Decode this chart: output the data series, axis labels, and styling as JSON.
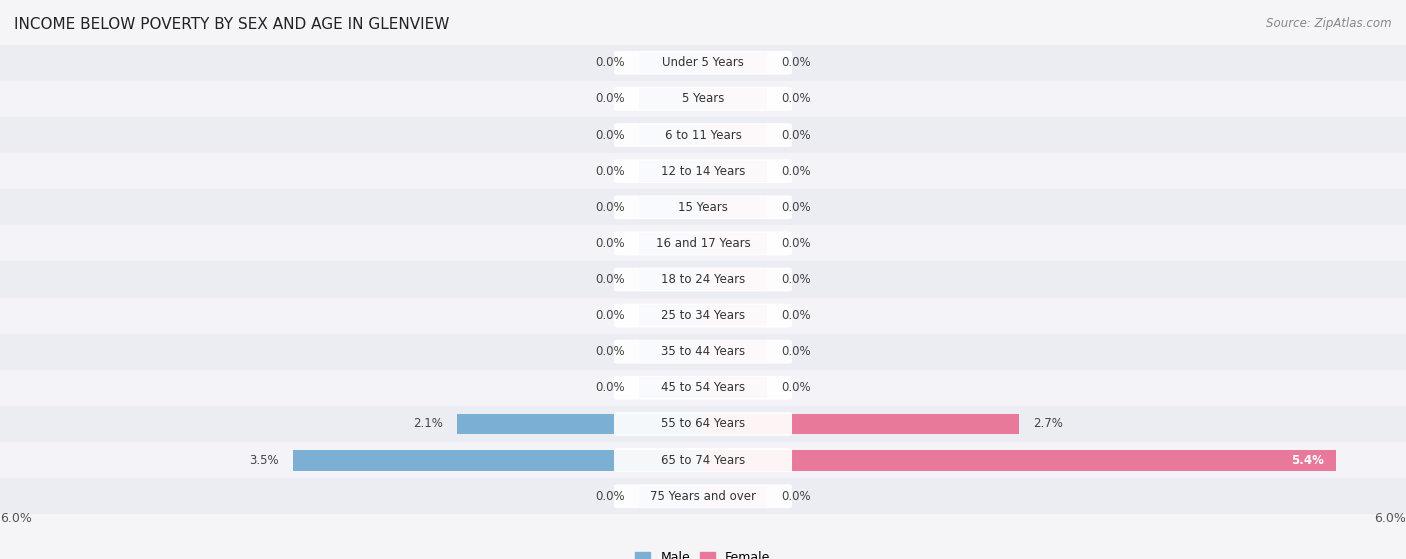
{
  "title": "INCOME BELOW POVERTY BY SEX AND AGE IN GLENVIEW",
  "source": "Source: ZipAtlas.com",
  "categories": [
    "Under 5 Years",
    "5 Years",
    "6 to 11 Years",
    "12 to 14 Years",
    "15 Years",
    "16 and 17 Years",
    "18 to 24 Years",
    "25 to 34 Years",
    "35 to 44 Years",
    "45 to 54 Years",
    "55 to 64 Years",
    "65 to 74 Years",
    "75 Years and over"
  ],
  "male_values": [
    0.0,
    0.0,
    0.0,
    0.0,
    0.0,
    0.0,
    0.0,
    0.0,
    0.0,
    0.0,
    2.1,
    3.5,
    0.0
  ],
  "female_values": [
    0.0,
    0.0,
    0.0,
    0.0,
    0.0,
    0.0,
    0.0,
    0.0,
    0.0,
    0.0,
    2.7,
    5.4,
    0.0
  ],
  "male_color": "#7bafd4",
  "female_color": "#e8799a",
  "male_color_zero": "#adc8e8",
  "female_color_zero": "#f0aabf",
  "xlim": 6.0,
  "bar_height": 0.58,
  "zero_bar_width": 0.55,
  "row_bg_even": "#ececf3",
  "row_bg_odd": "#f4f4f8",
  "background_color": "#f5f5f8",
  "label_fontsize": 8.5,
  "title_fontsize": 11,
  "axis_label_fontsize": 9,
  "legend_fontsize": 9,
  "value_fontsize": 8.5
}
